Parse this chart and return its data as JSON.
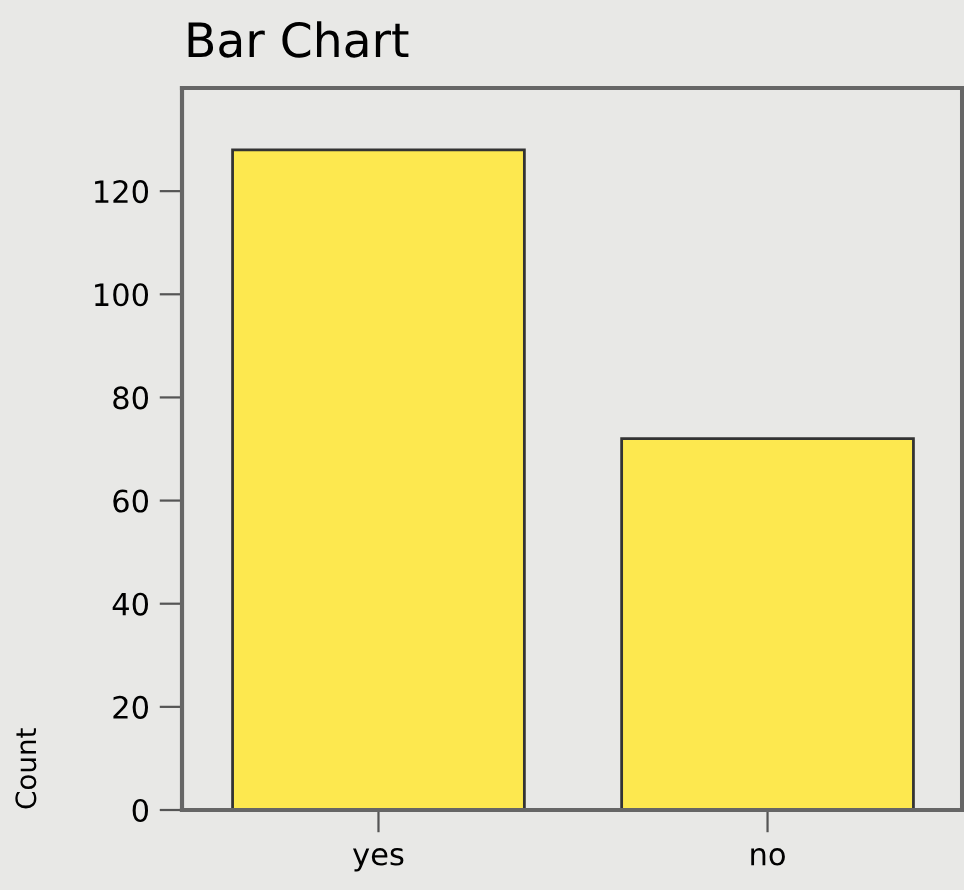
{
  "chart_data": {
    "type": "bar",
    "title": "Bar Chart",
    "ylabel": "Count",
    "categories": [
      "yes",
      "no"
    ],
    "values": [
      128,
      72
    ],
    "color": "#fde84f",
    "ylim": [
      0,
      140
    ],
    "yticks": [
      0,
      20,
      40,
      60,
      80,
      100,
      120
    ],
    "grid": false,
    "legend": false
  }
}
